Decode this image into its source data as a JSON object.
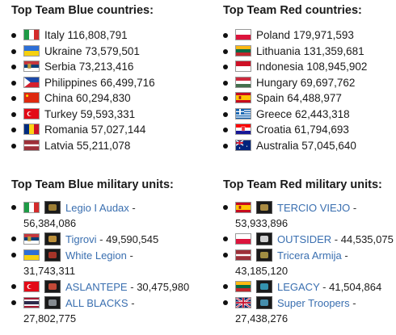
{
  "blue_countries": {
    "title": "Top Team Blue countries:",
    "items": [
      {
        "flag_icon": "italy-flag-icon",
        "name": "Italy",
        "value": "116,808,791"
      },
      {
        "flag_icon": "ukraine-flag-icon",
        "name": "Ukraine",
        "value": "73,579,501"
      },
      {
        "flag_icon": "serbia-flag-icon",
        "name": "Serbia",
        "value": "73,213,416"
      },
      {
        "flag_icon": "philippines-flag-icon",
        "name": "Philippines",
        "value": "66,499,716"
      },
      {
        "flag_icon": "china-flag-icon",
        "name": "China",
        "value": "60,294,830"
      },
      {
        "flag_icon": "turkey-flag-icon",
        "name": "Turkey",
        "value": "59,593,331"
      },
      {
        "flag_icon": "romania-flag-icon",
        "name": "Romania",
        "value": "57,027,144"
      },
      {
        "flag_icon": "latvia-flag-icon",
        "name": "Latvia",
        "value": "55,211,078"
      }
    ]
  },
  "red_countries": {
    "title": "Top Team Red countries:",
    "items": [
      {
        "flag_icon": "poland-flag-icon",
        "name": "Poland",
        "value": "179,971,593"
      },
      {
        "flag_icon": "lithuania-flag-icon",
        "name": "Lithuania",
        "value": "131,359,681"
      },
      {
        "flag_icon": "indonesia-flag-icon",
        "name": "Indonesia",
        "value": "108,945,902"
      },
      {
        "flag_icon": "hungary-flag-icon",
        "name": "Hungary",
        "value": "69,697,762"
      },
      {
        "flag_icon": "spain-flag-icon",
        "name": "Spain",
        "value": "64,488,977"
      },
      {
        "flag_icon": "greece-flag-icon",
        "name": "Greece",
        "value": "62,443,318"
      },
      {
        "flag_icon": "croatia-flag-icon",
        "name": "Croatia",
        "value": "61,794,693"
      },
      {
        "flag_icon": "australia-flag-icon",
        "name": "Australia",
        "value": "57,045,640"
      }
    ]
  },
  "blue_units": {
    "title": "Top Team Blue military units:",
    "items": [
      {
        "flag_icon": "italy-flag-icon",
        "badge_icon": "unit-emblem-icon",
        "name": "Legio I Audax",
        "value": "56,384,086"
      },
      {
        "flag_icon": "serbia-flag-icon",
        "badge_icon": "unit-emblem-icon",
        "name": "Tigrovi",
        "value": "49,590,545"
      },
      {
        "flag_icon": "ukraine-flag-icon",
        "badge_icon": "unit-emblem-icon",
        "name": "White Legion",
        "value": "31,743,311"
      },
      {
        "flag_icon": "turkey-flag-icon",
        "badge_icon": "unit-emblem-icon",
        "name": "ASLANTEPE",
        "value": "30,475,980"
      },
      {
        "flag_icon": "thailand-flag-icon",
        "badge_icon": "unit-emblem-icon",
        "name": "ALL BLACKS",
        "value": "27,802,775"
      }
    ]
  },
  "red_units": {
    "title": "Top Team Red military units:",
    "items": [
      {
        "flag_icon": "spain-flag-icon",
        "badge_icon": "unit-emblem-icon",
        "name": "TERCIO VIEJO",
        "value": "53,933,896"
      },
      {
        "flag_icon": "poland-flag-icon",
        "badge_icon": "unit-emblem-icon",
        "name": "OUTSIDER",
        "value": "44,535,075"
      },
      {
        "flag_icon": "latvia-flag-icon",
        "badge_icon": "unit-emblem-icon",
        "name": "Tricera Armija",
        "value": "43,185,120"
      },
      {
        "flag_icon": "lithuania-flag-icon",
        "badge_icon": "unit-emblem-icon",
        "name": "LEGACY",
        "value": "41,504,864"
      },
      {
        "flag_icon": "uk-flag-icon",
        "badge_icon": "unit-emblem-icon",
        "name": "Super Troopers",
        "value": "27,438,276"
      }
    ]
  },
  "link_color": "#3a6fb0"
}
